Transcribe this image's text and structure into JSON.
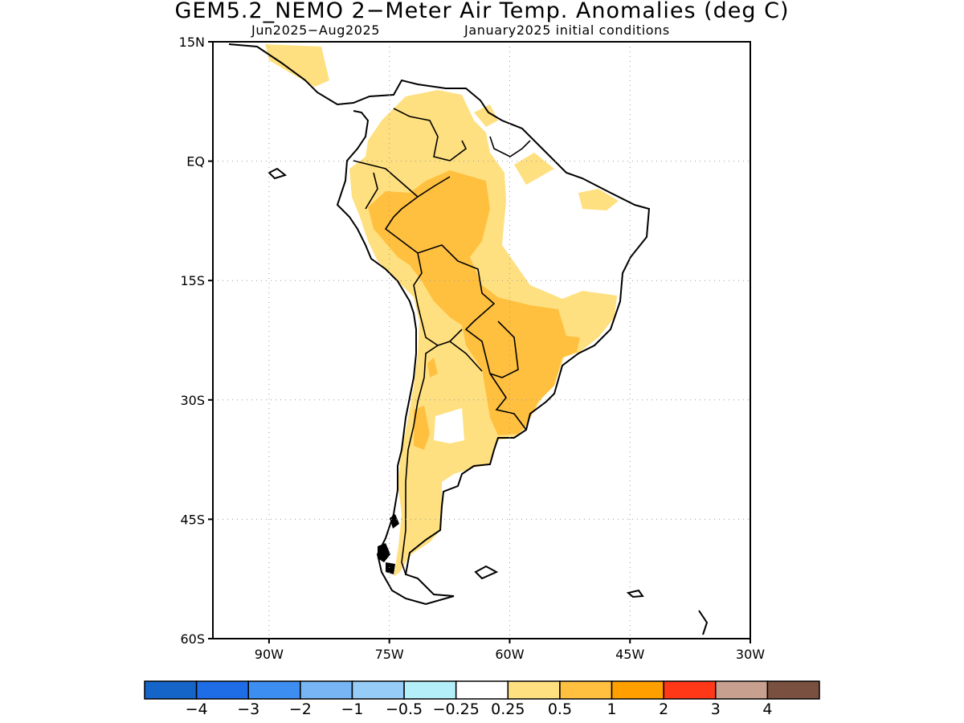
{
  "header": {
    "title": "GEM5.2_NEMO 2−Meter Air Temp. Anomalies (deg C)",
    "period": "Jun2025−Aug2025",
    "init": "January2025 initial conditions"
  },
  "map": {
    "projection": "lat-lon",
    "lon_range": [
      -97,
      -30
    ],
    "lat_range": [
      -60,
      15
    ],
    "grid": "dotted",
    "lat_ticks": [
      {
        "value": 15,
        "label": "15N"
      },
      {
        "value": 0,
        "label": "EQ"
      },
      {
        "value": -15,
        "label": "15S"
      },
      {
        "value": -30,
        "label": "30S"
      },
      {
        "value": -45,
        "label": "45S"
      },
      {
        "value": -60,
        "label": "60S"
      }
    ],
    "lon_ticks": [
      {
        "value": -90,
        "label": "90W"
      },
      {
        "value": -75,
        "label": "75W"
      },
      {
        "value": -60,
        "label": "60W"
      },
      {
        "value": -45,
        "label": "45W"
      },
      {
        "value": -30,
        "label": "30W"
      }
    ]
  },
  "colorbar": {
    "colors": [
      "#1565c8",
      "#1e6de6",
      "#3c8ff0",
      "#78b5f5",
      "#96cdf8",
      "#b4eef8",
      "#ffffff",
      "#ffe080",
      "#ffc040",
      "#ffa000",
      "#ff3818",
      "#c8a090",
      "#7a5040"
    ],
    "labels": [
      "−4",
      "−3",
      "−2",
      "−1",
      "−0.5",
      "−0.25",
      "0.25",
      "0.5",
      "1",
      "2",
      "3",
      "4"
    ]
  },
  "legend_colors": {
    "weak_warm": "#ffe080",
    "moderate_warm": "#ffc040"
  }
}
